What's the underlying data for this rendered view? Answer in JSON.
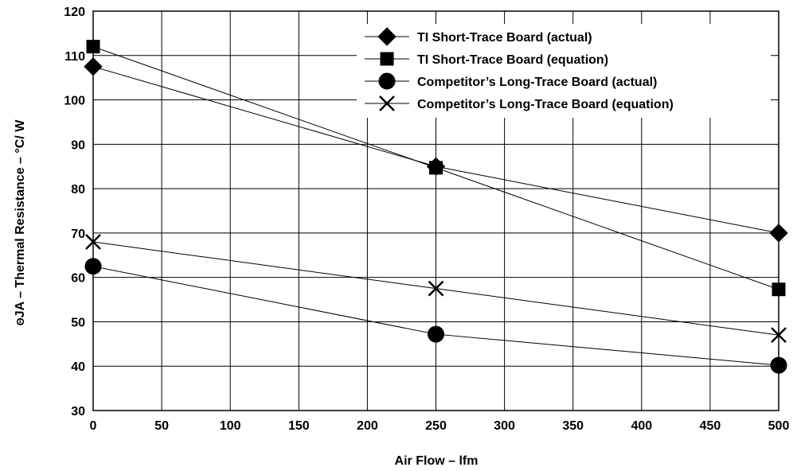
{
  "chart_data": {
    "type": "line",
    "title": "",
    "xlabel": "Air Flow – lfm",
    "ylabel_main": "JA – Thermal Resistance – °C/ W",
    "ylabel_theta": "Θ",
    "xlim": [
      0,
      500
    ],
    "ylim": [
      30,
      120
    ],
    "xticks": [
      0,
      50,
      100,
      150,
      200,
      250,
      300,
      350,
      400,
      450,
      500
    ],
    "yticks": [
      30,
      40,
      50,
      60,
      70,
      80,
      90,
      100,
      110,
      120
    ],
    "grid": true,
    "legend_position": "top-right",
    "series": [
      {
        "name": "TI Short-Trace Board (actual)",
        "marker": "diamond",
        "x": [
          0,
          250,
          500
        ],
        "y": [
          107.5,
          85,
          70
        ]
      },
      {
        "name": "TI Short-Trace Board (equation)",
        "marker": "square",
        "x": [
          0,
          250,
          500
        ],
        "y": [
          112,
          84.7,
          57.3
        ]
      },
      {
        "name": "Competitor’s Long-Trace Board (actual)",
        "marker": "circle",
        "x": [
          0,
          250,
          500
        ],
        "y": [
          62.5,
          47.2,
          40.2
        ]
      },
      {
        "name": "Competitor’s Long-Trace Board (equation)",
        "marker": "x",
        "x": [
          0,
          250,
          500
        ],
        "y": [
          68,
          57.5,
          47
        ]
      }
    ]
  }
}
